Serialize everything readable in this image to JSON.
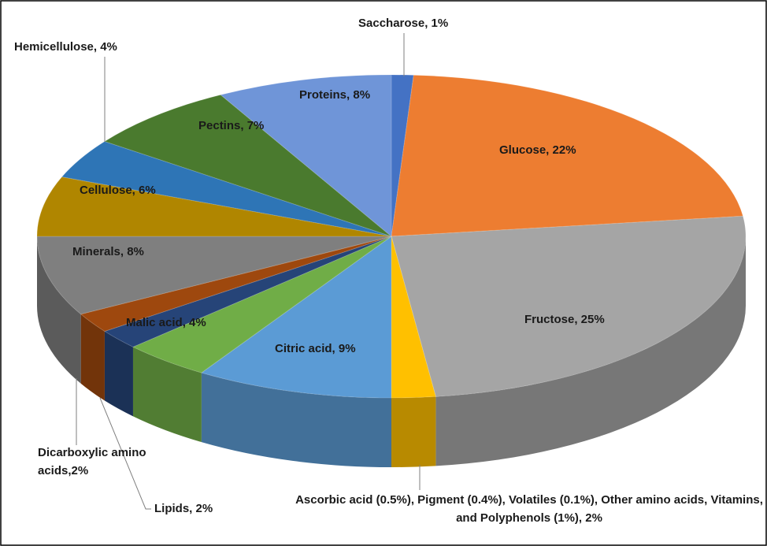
{
  "chart_data": {
    "type": "pie3d",
    "values": [
      1,
      22,
      25,
      2,
      9,
      4,
      2,
      2,
      8,
      6,
      4,
      7,
      8
    ],
    "value_labels": [
      "Saccharose, 1%",
      "Glucose, 22%",
      "Fructose, 25%",
      "Ascorbic acid (0.5%), Pigment (0.4%), Volatiles (0.1%), Other amino acids, Vitamins, and Polyphenols (1%), 2%",
      "Citric acid, 9%",
      "Malic acid, 4%",
      "Lipids, 2%",
      "Dicarboxylic amino acids,2%",
      "Minerals, 8%",
      "Cellulose, 6%",
      "Hemicellulose, 4%",
      "Pectins, 7%",
      "Proteins, 8%"
    ],
    "colors": [
      "#4472c4",
      "#ed7d31",
      "#a5a5a5",
      "#ffc000",
      "#5b9bd5",
      "#70ad47",
      "#264478",
      "#9e480e",
      "#7f7f7f",
      "#b08600",
      "#2e75b6",
      "#4a7a2e",
      "#6f95d8"
    ]
  }
}
